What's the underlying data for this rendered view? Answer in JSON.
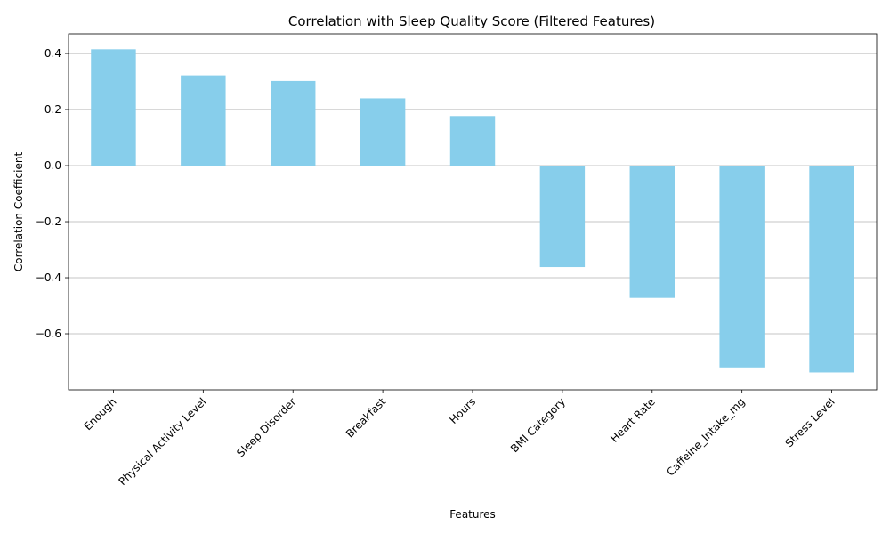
{
  "chart_data": {
    "type": "bar",
    "title": "Correlation with Sleep Quality Score (Filtered Features)",
    "xlabel": "Features",
    "ylabel": "Correlation Coefficient",
    "categories": [
      "Enough",
      "Physical Activity Level",
      "Sleep Disorder",
      "Breakfast",
      "Hours",
      "BMI Category",
      "Heart Rate",
      "Caffeine_Intake_mg",
      "Stress Level"
    ],
    "values": [
      0.415,
      0.322,
      0.302,
      0.24,
      0.177,
      -0.362,
      -0.472,
      -0.72,
      -0.738
    ],
    "ylim": [
      -0.8,
      0.47
    ],
    "yticks": [
      0.4,
      0.2,
      0.0,
      -0.2,
      -0.4,
      -0.6
    ],
    "ytick_labels": [
      "0.4",
      "0.2",
      "0.0",
      "−0.2",
      "−0.4",
      "−0.6"
    ],
    "bar_color": "#87ceeb",
    "grid": "y-axis on",
    "legend": "none"
  }
}
